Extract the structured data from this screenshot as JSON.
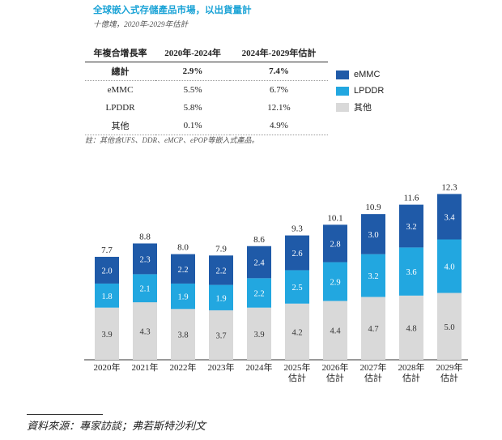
{
  "title": "全球嵌入式存儲產品市場，以出貨量計",
  "subtitle": "十億塊，2020年-2029年估計",
  "cagr_table": {
    "headers": [
      "年複合增長率",
      "2020年-2024年",
      "2024年-2029年估計"
    ],
    "rows": [
      {
        "label": "總計",
        "c1": "2.9%",
        "c2": "7.4%"
      },
      {
        "label": "eMMC",
        "c1": "5.5%",
        "c2": "6.7%"
      },
      {
        "label": "LPDDR",
        "c1": "5.8%",
        "c2": "12.1%"
      },
      {
        "label": "其他",
        "c1": "0.1%",
        "c2": "4.9%"
      }
    ]
  },
  "note": "註：其他含UFS、DDR、eMCP、ePOP等嵌入式產品。",
  "source": "資料來源：專家訪談；弗若斯特沙利文",
  "colors": {
    "emmc": "#1f5aa8",
    "lpddr": "#22a7e0",
    "other": "#d9d9d9",
    "title": "#1ba3d6"
  },
  "chart_data": {
    "type": "bar",
    "stacked": true,
    "categories": [
      "2020年",
      "2021年",
      "2022年",
      "2023年",
      "2024年",
      "2025年\n估計",
      "2026年\n估計",
      "2027年\n估計",
      "2028年\n估計",
      "2029年\n估計"
    ],
    "series": [
      {
        "name": "其他",
        "key": "other",
        "values": [
          3.9,
          4.3,
          3.8,
          3.7,
          3.9,
          4.2,
          4.4,
          4.7,
          4.8,
          5.0
        ]
      },
      {
        "name": "LPDDR",
        "key": "lpddr",
        "values": [
          1.8,
          2.1,
          1.9,
          1.9,
          2.2,
          2.5,
          2.9,
          3.2,
          3.6,
          4.0
        ]
      },
      {
        "name": "eMMC",
        "key": "emmc",
        "values": [
          2.0,
          2.3,
          2.2,
          2.2,
          2.4,
          2.6,
          2.8,
          3.0,
          3.2,
          3.4
        ]
      }
    ],
    "totals": [
      "7.7",
      "8.8",
      "8.0",
      "7.9",
      "8.6",
      "9.3",
      "10.1",
      "10.9",
      "11.6",
      "12.3"
    ],
    "legend": [
      "eMMC",
      "LPDDR",
      "其他"
    ],
    "ylim": [
      0,
      12.3
    ]
  }
}
